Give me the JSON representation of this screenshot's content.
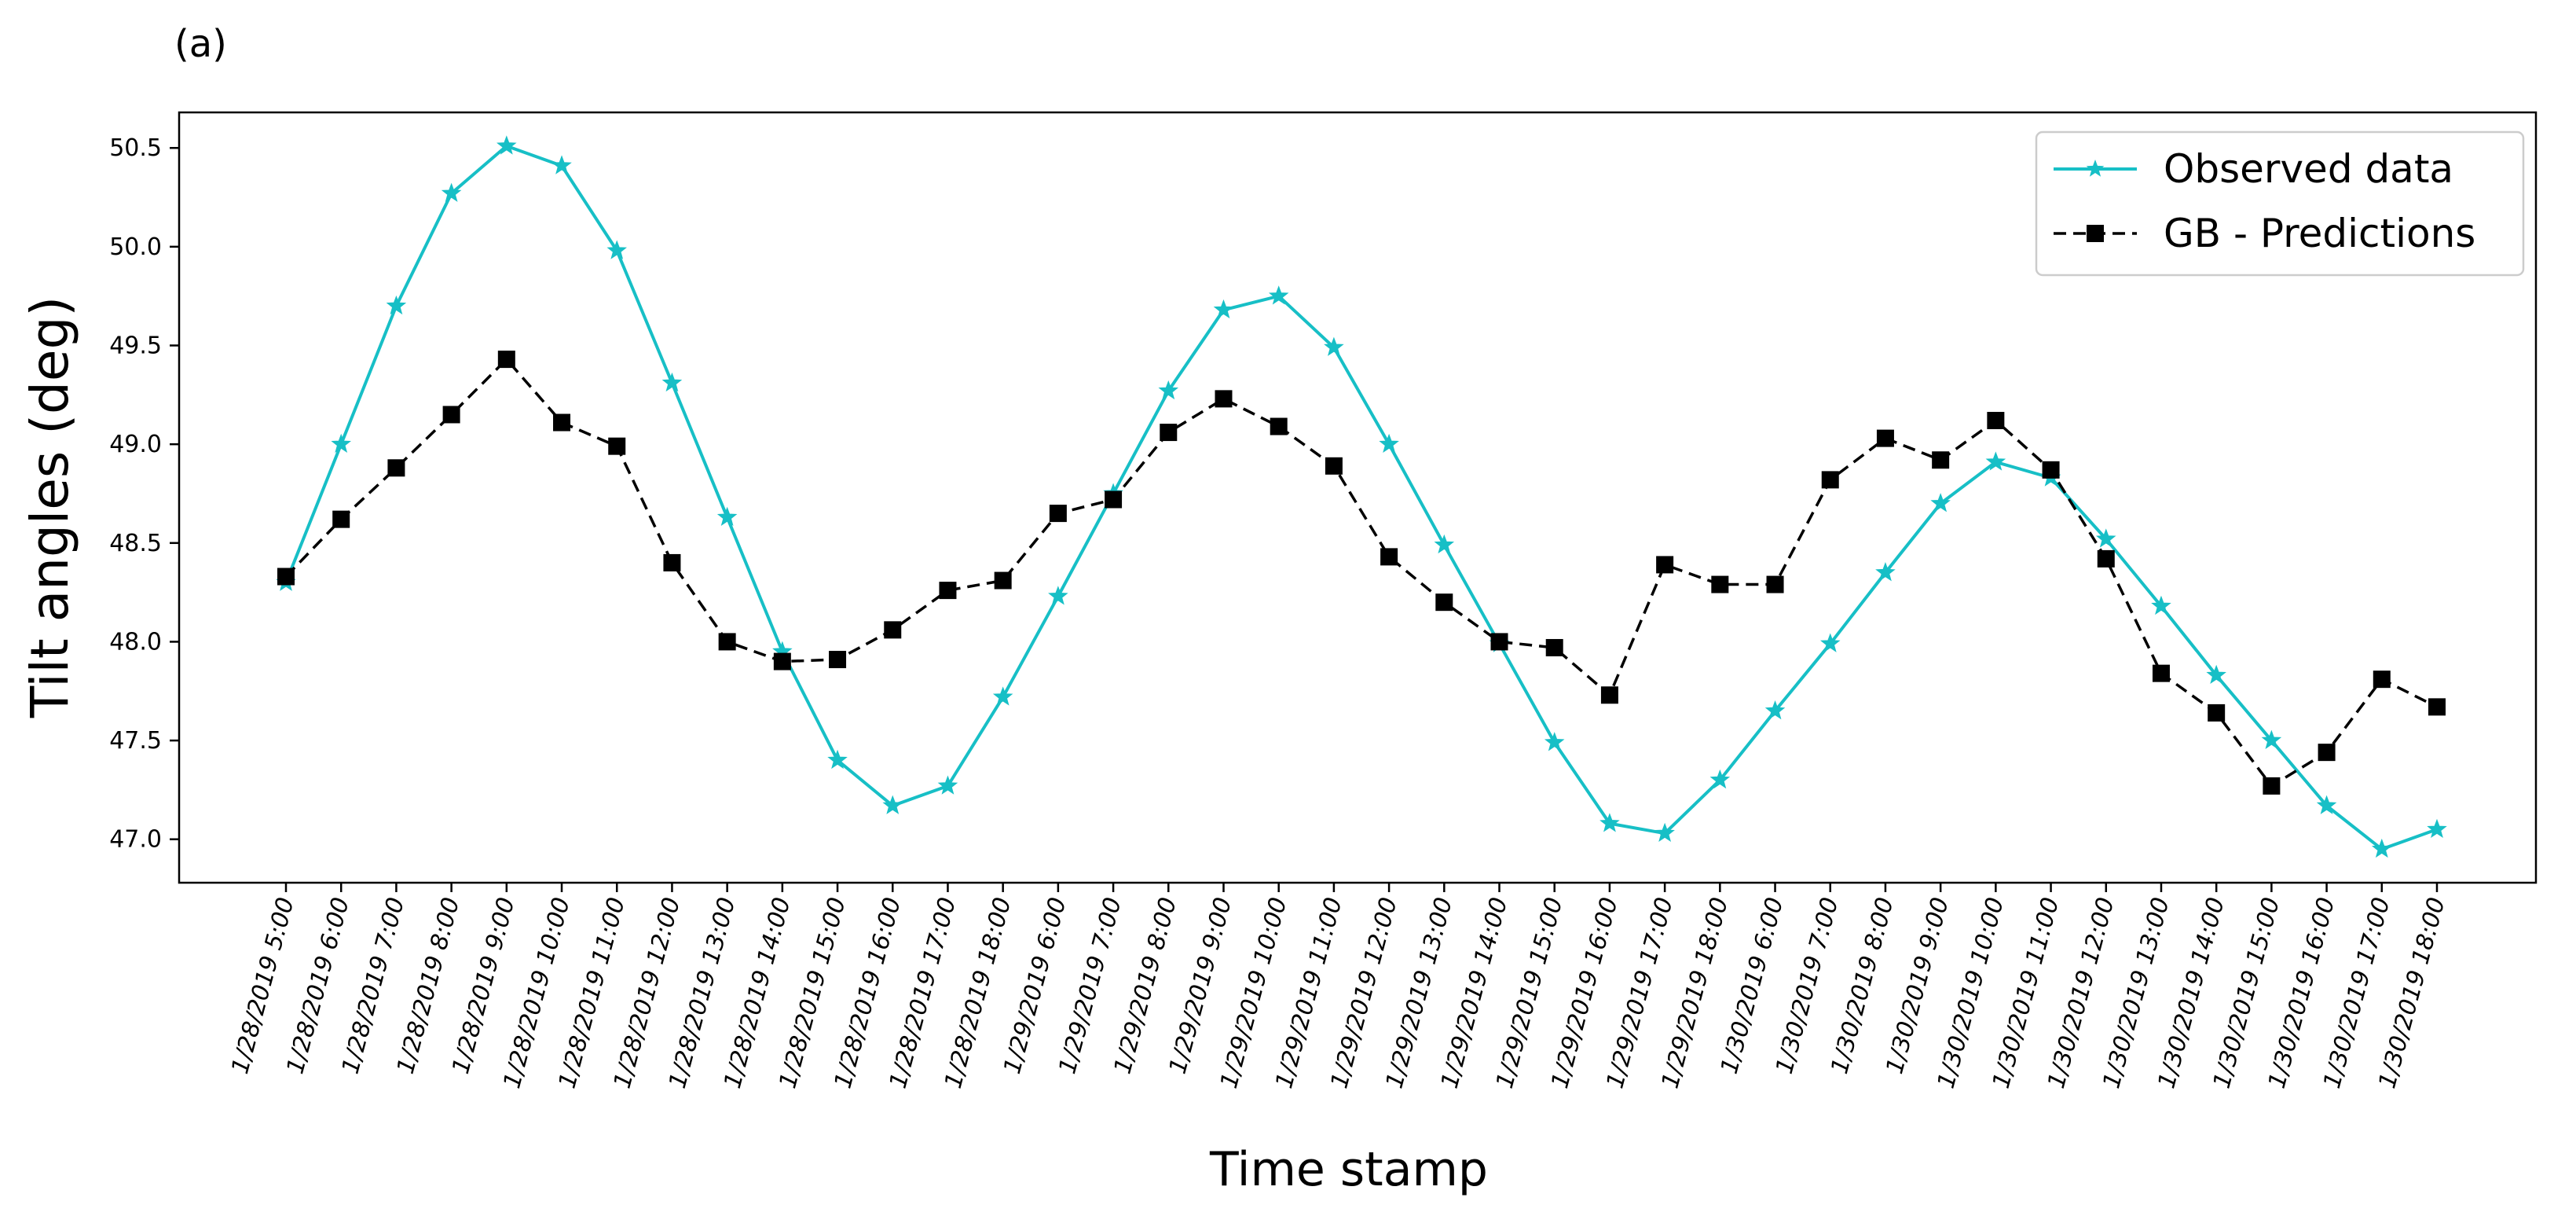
{
  "panel_label": "(a)",
  "colors": {
    "observed": "#17bfc6",
    "predicted": "#000000",
    "axes": "#000000",
    "background": "#ffffff"
  },
  "chart_data": {
    "type": "line",
    "title": "",
    "xlabel": "Time stamp",
    "ylabel": "Tilt angles (deg)",
    "ylim": [
      46.78,
      50.68
    ],
    "yticks": [
      "47.0",
      "47.5",
      "48.0",
      "48.5",
      "49.0",
      "49.5",
      "50.0",
      "50.5"
    ],
    "grid": false,
    "legend_position": "top-right",
    "categories": [
      "1/28/2019 5:00",
      "1/28/2019 6:00",
      "1/28/2019 7:00",
      "1/28/2019 8:00",
      "1/28/2019 9:00",
      "1/28/2019 10:00",
      "1/28/2019 11:00",
      "1/28/2019 12:00",
      "1/28/2019 13:00",
      "1/28/2019 14:00",
      "1/28/2019 15:00",
      "1/28/2019 16:00",
      "1/28/2019 17:00",
      "1/28/2019 18:00",
      "1/29/2019 6:00",
      "1/29/2019 7:00",
      "1/29/2019 8:00",
      "1/29/2019 9:00",
      "1/29/2019 10:00",
      "1/29/2019 11:00",
      "1/29/2019 12:00",
      "1/29/2019 13:00",
      "1/29/2019 14:00",
      "1/29/2019 15:00",
      "1/29/2019 16:00",
      "1/29/2019 17:00",
      "1/29/2019 18:00",
      "1/30/2019 6:00",
      "1/30/2019 7:00",
      "1/30/2019 8:00",
      "1/30/2019 9:00",
      "1/30/2019 10:00",
      "1/30/2019 11:00",
      "1/30/2019 12:00",
      "1/30/2019 13:00",
      "1/30/2019 14:00",
      "1/30/2019 15:00",
      "1/30/2019 16:00",
      "1/30/2019 17:00",
      "1/30/2019 18:00"
    ],
    "series": [
      {
        "name": "Observed data",
        "style": "solid",
        "marker": "star",
        "values": [
          48.3,
          49.0,
          49.7,
          50.27,
          50.51,
          50.41,
          49.98,
          49.31,
          48.63,
          47.95,
          47.4,
          47.17,
          47.27,
          47.72,
          48.23,
          48.75,
          49.27,
          49.68,
          49.75,
          49.49,
          49.0,
          48.49,
          47.99,
          47.49,
          47.08,
          47.03,
          47.3,
          47.65,
          47.99,
          48.35,
          48.7,
          48.91,
          48.83,
          48.52,
          48.18,
          47.83,
          47.5,
          47.17,
          46.95,
          47.05
        ]
      },
      {
        "name": "GB - Predictions",
        "style": "dashed",
        "marker": "square",
        "values": [
          48.33,
          48.62,
          48.88,
          49.15,
          49.43,
          49.11,
          48.99,
          48.4,
          48.0,
          47.9,
          47.91,
          48.06,
          48.26,
          48.31,
          48.65,
          48.72,
          49.06,
          49.23,
          49.09,
          48.89,
          48.43,
          48.2,
          48.0,
          47.97,
          47.73,
          48.39,
          48.29,
          48.29,
          48.82,
          49.03,
          48.92,
          49.12,
          48.87,
          48.42,
          47.84,
          47.64,
          47.27,
          47.44,
          47.81,
          47.67
        ]
      }
    ]
  }
}
